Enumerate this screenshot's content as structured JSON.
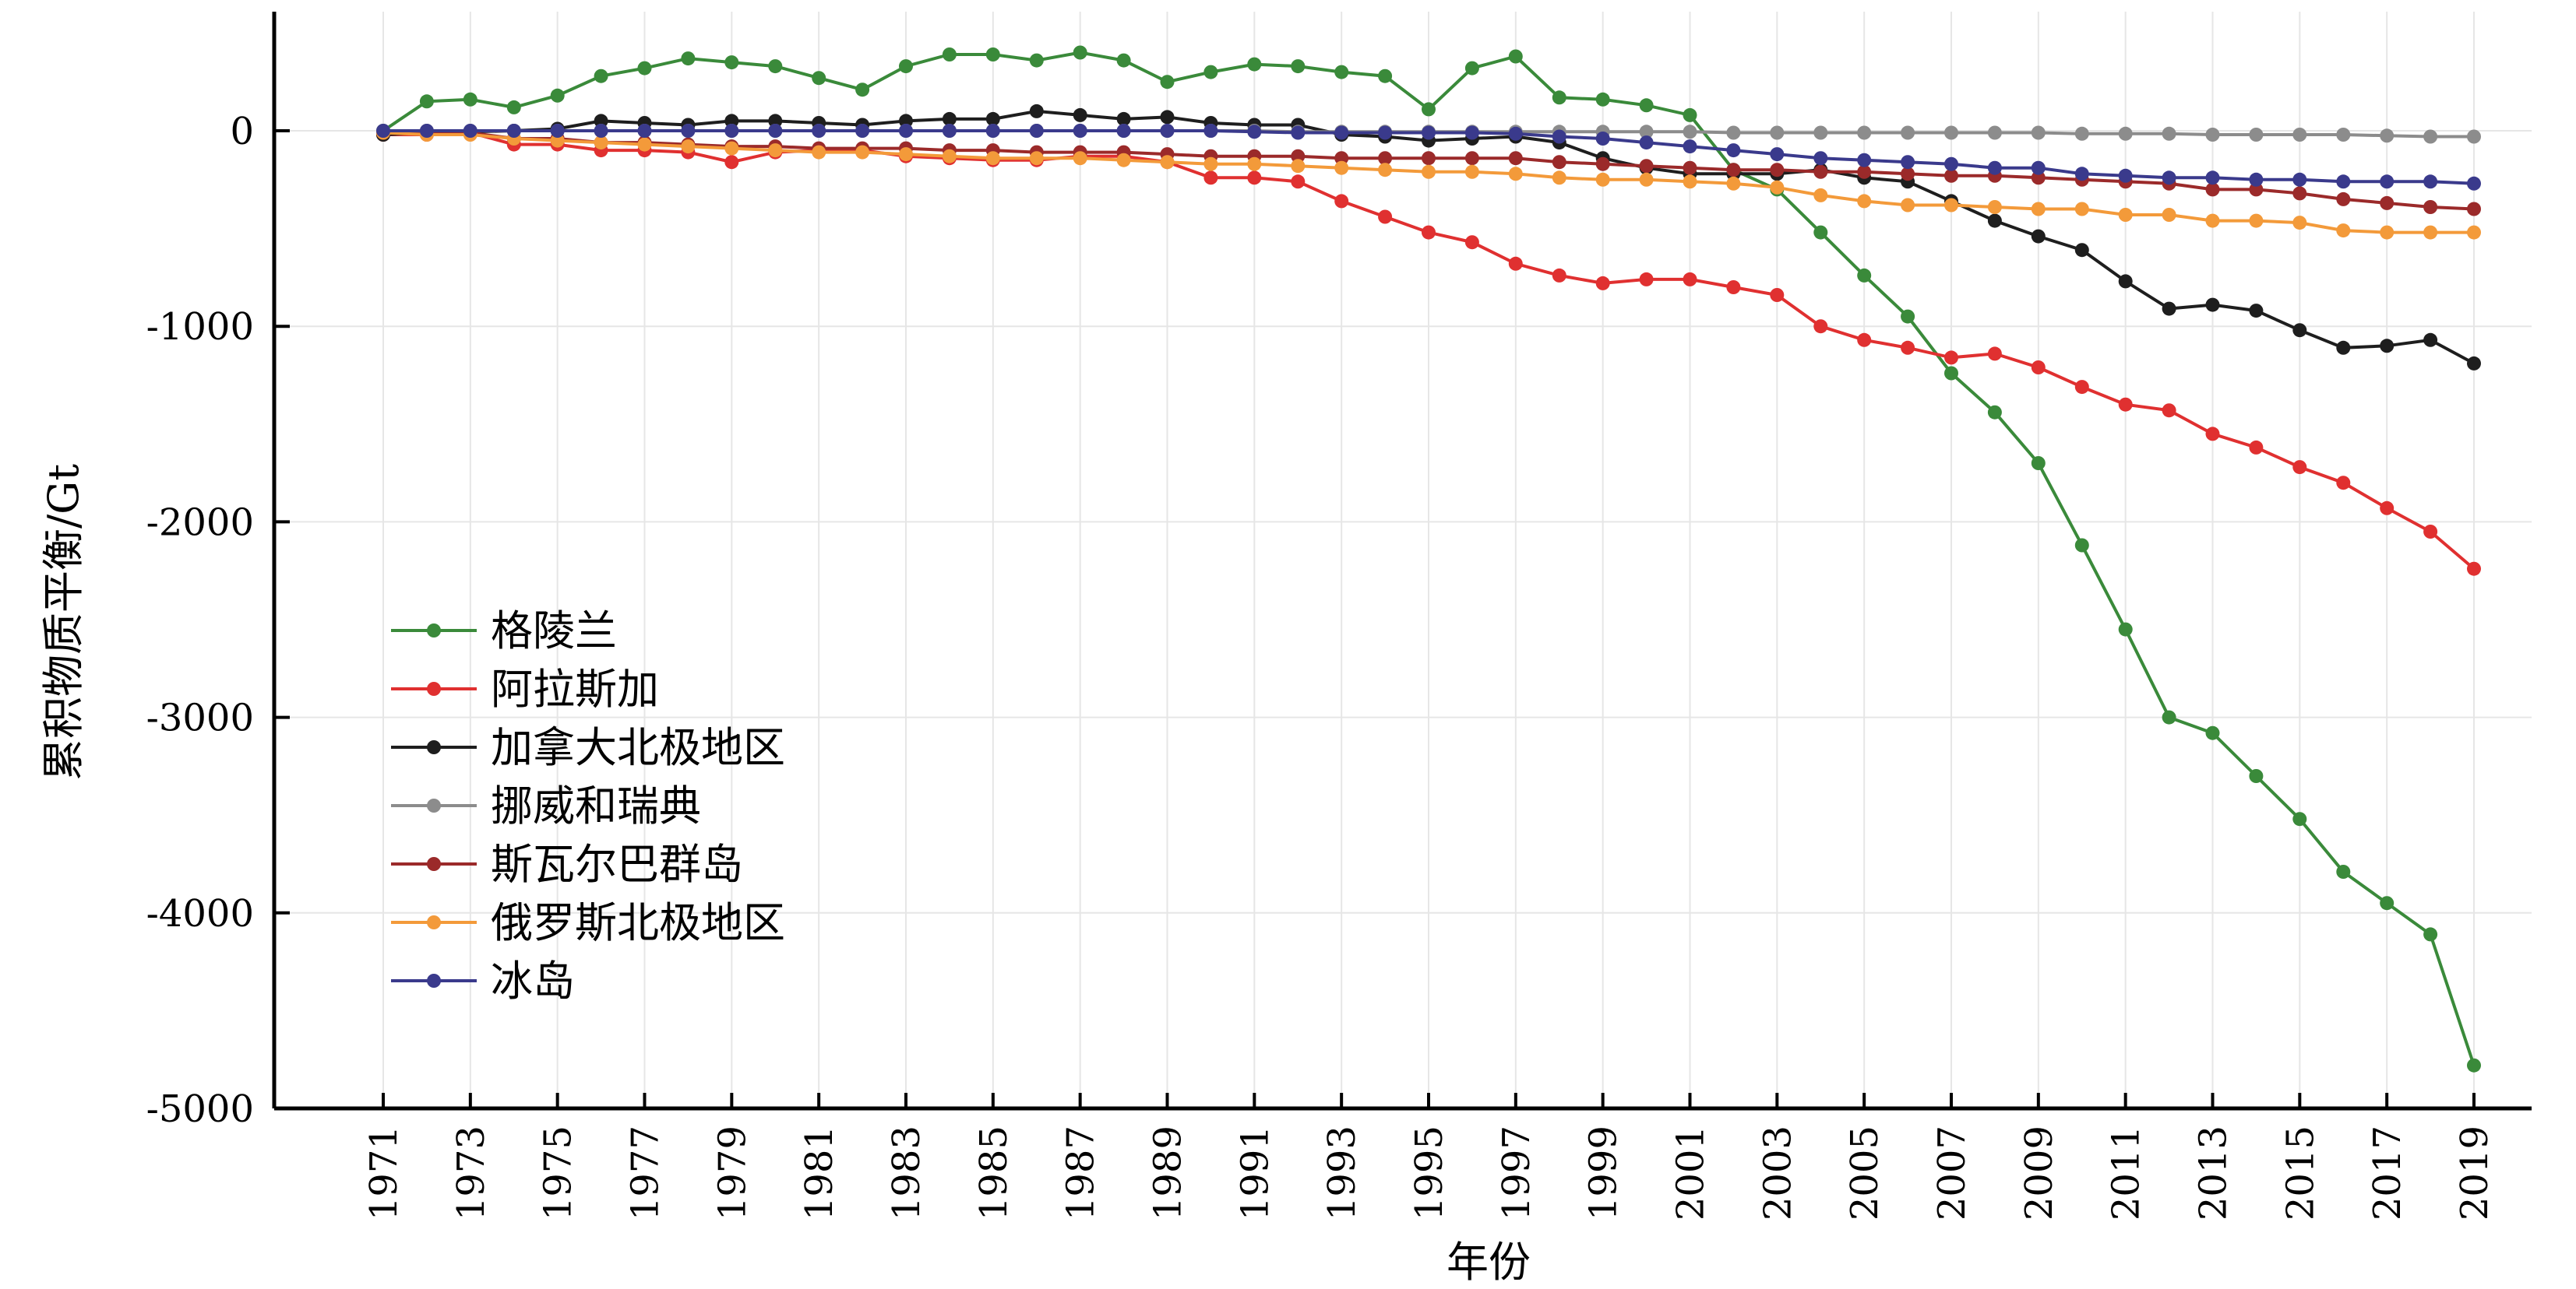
{
  "chart_data": {
    "type": "line",
    "xlabel": "年份",
    "ylabel": "累积物质平衡/Gt",
    "xlim": [
      1971,
      2019
    ],
    "ylim": [
      -5000,
      600
    ],
    "x_ticks": [
      1971,
      1973,
      1975,
      1977,
      1979,
      1981,
      1983,
      1985,
      1987,
      1989,
      1991,
      1993,
      1995,
      1997,
      1999,
      2001,
      2003,
      2005,
      2007,
      2009,
      2011,
      2013,
      2015,
      2017,
      2019
    ],
    "y_ticks": [
      0,
      -1000,
      -2000,
      -3000,
      -4000,
      -5000
    ],
    "grid": true,
    "legend_position": "center-left",
    "x": [
      1971,
      1972,
      1973,
      1974,
      1975,
      1976,
      1977,
      1978,
      1979,
      1980,
      1981,
      1982,
      1983,
      1984,
      1985,
      1986,
      1987,
      1988,
      1989,
      1990,
      1991,
      1992,
      1993,
      1994,
      1995,
      1996,
      1997,
      1998,
      1999,
      2000,
      2001,
      2002,
      2003,
      2004,
      2005,
      2006,
      2007,
      2008,
      2009,
      2010,
      2011,
      2012,
      2013,
      2014,
      2015,
      2016,
      2017,
      2018,
      2019
    ],
    "series": [
      {
        "name": "格陵兰",
        "color": "#3a8a3a",
        "values": [
          0,
          150,
          160,
          120,
          180,
          280,
          320,
          370,
          350,
          330,
          270,
          210,
          330,
          390,
          390,
          360,
          400,
          360,
          250,
          300,
          340,
          330,
          300,
          280,
          110,
          320,
          380,
          170,
          160,
          130,
          80,
          -200,
          -300,
          -520,
          -740,
          -950,
          -1240,
          -1440,
          -1700,
          -2120,
          -2550,
          -3000,
          -3080,
          -3300,
          -3520,
          -3790,
          -3950,
          -4110,
          -4780
        ]
      },
      {
        "name": "阿拉斯加",
        "color": "#e03030",
        "values": [
          -20,
          -20,
          -10,
          -70,
          -70,
          -100,
          -100,
          -110,
          -160,
          -110,
          -100,
          -100,
          -130,
          -140,
          -150,
          -150,
          -130,
          -130,
          -160,
          -240,
          -240,
          -260,
          -360,
          -440,
          -520,
          -570,
          -680,
          -740,
          -780,
          -760,
          -760,
          -800,
          -840,
          -1000,
          -1070,
          -1110,
          -1160,
          -1140,
          -1210,
          -1310,
          -1400,
          -1430,
          -1550,
          -1620,
          -1720,
          -1800,
          -1930,
          -2050,
          -2240
        ]
      },
      {
        "name": "加拿大北极地区",
        "color": "#1e1e1e",
        "values": [
          -20,
          -10,
          -5,
          0,
          10,
          50,
          40,
          30,
          50,
          50,
          40,
          30,
          50,
          60,
          60,
          100,
          80,
          60,
          70,
          40,
          30,
          30,
          -20,
          -30,
          -50,
          -40,
          -30,
          -60,
          -140,
          -190,
          -220,
          -220,
          -220,
          -200,
          -240,
          -260,
          -360,
          -460,
          -540,
          -610,
          -770,
          -910,
          -890,
          -920,
          -1020,
          -1110,
          -1100,
          -1070,
          -1190
        ]
      },
      {
        "name": "挪威和瑞典",
        "color": "#8c8c8c",
        "values": [
          0,
          0,
          0,
          0,
          0,
          0,
          0,
          0,
          0,
          0,
          0,
          0,
          0,
          0,
          0,
          0,
          0,
          0,
          0,
          0,
          0,
          -5,
          -5,
          -5,
          -5,
          -5,
          -5,
          -5,
          -5,
          -5,
          -5,
          -10,
          -10,
          -10,
          -10,
          -10,
          -10,
          -10,
          -10,
          -15,
          -15,
          -15,
          -20,
          -20,
          -20,
          -20,
          -25,
          -30,
          -30
        ]
      },
      {
        "name": "斯瓦尔巴群岛",
        "color": "#9b2a2a",
        "values": [
          -10,
          -10,
          -10,
          -40,
          -40,
          -60,
          -60,
          -70,
          -80,
          -80,
          -90,
          -90,
          -90,
          -100,
          -100,
          -110,
          -110,
          -110,
          -120,
          -130,
          -130,
          -130,
          -140,
          -140,
          -140,
          -140,
          -140,
          -160,
          -170,
          -180,
          -190,
          -200,
          -200,
          -210,
          -210,
          -220,
          -230,
          -230,
          -240,
          -250,
          -260,
          -270,
          -300,
          -300,
          -320,
          -350,
          -370,
          -390,
          -400
        ]
      },
      {
        "name": "俄罗斯北极地区",
        "color": "#f39a3a",
        "values": [
          -10,
          -20,
          -20,
          -40,
          -50,
          -60,
          -70,
          -80,
          -90,
          -100,
          -110,
          -110,
          -120,
          -130,
          -140,
          -140,
          -140,
          -150,
          -160,
          -170,
          -170,
          -180,
          -190,
          -200,
          -210,
          -210,
          -220,
          -240,
          -250,
          -250,
          -260,
          -270,
          -290,
          -330,
          -360,
          -380,
          -380,
          -390,
          -400,
          -400,
          -430,
          -430,
          -460,
          -460,
          -470,
          -510,
          -520,
          -520,
          -520
        ]
      },
      {
        "name": "冰岛",
        "color": "#3a3a8c",
        "values": [
          0,
          0,
          0,
          0,
          0,
          0,
          0,
          0,
          0,
          0,
          0,
          0,
          0,
          0,
          0,
          0,
          0,
          0,
          0,
          0,
          -5,
          -10,
          -10,
          -10,
          -10,
          -10,
          -15,
          -30,
          -40,
          -60,
          -80,
          -100,
          -120,
          -140,
          -150,
          -160,
          -170,
          -190,
          -190,
          -220,
          -230,
          -240,
          -240,
          -250,
          -250,
          -260,
          -260,
          -260,
          -270
        ]
      }
    ]
  }
}
